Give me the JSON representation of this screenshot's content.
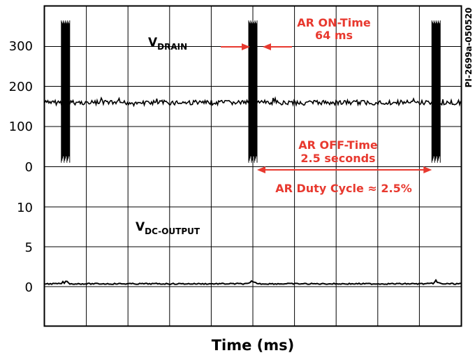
{
  "chart_data": {
    "type": "line",
    "title": "",
    "xlabel": "Time (ms)",
    "x_divisions": 10,
    "figure_code": "PI-2699a-050520",
    "panels": [
      {
        "name": "",
        "trace_label": {
          "main": "V",
          "sub": "DRAIN"
        },
        "yticks": [
          "300",
          "200",
          "100",
          "0"
        ],
        "ylim": [
          0,
          350
        ],
        "baseline": 160,
        "baseline_noise": 6,
        "bursts": [
          {
            "x_div": 0.5,
            "y_min": 10,
            "y_max": 365
          },
          {
            "x_div": 5.0,
            "y_min": 10,
            "y_max": 365
          },
          {
            "x_div": 9.4,
            "y_min": 10,
            "y_max": 365
          }
        ]
      },
      {
        "name": "",
        "trace_label": {
          "main": "V",
          "sub": "DC-OUTPUT"
        },
        "yticks": [
          "10",
          "5",
          "0"
        ],
        "ylim": [
          0,
          15
        ],
        "baseline": 0,
        "bumps": [
          {
            "x_div": 0.5,
            "height": 0.3
          },
          {
            "x_div": 5.0,
            "height": 0.3
          },
          {
            "x_div": 9.4,
            "height": 0.3
          }
        ]
      }
    ],
    "annotations": {
      "on_time": {
        "line1": "AR ON-Time",
        "line2": "64 ms"
      },
      "off_time": {
        "line1": "AR OFF-Time",
        "line2": "2.5 seconds",
        "from_x_div": 5.1,
        "to_x_div": 9.3
      },
      "duty_cycle": "AR Duty Cycle ≈ 2.5%"
    },
    "colors": {
      "trace": "#000000",
      "annotation": "#e8392f",
      "grid": "#000000"
    },
    "grid": true
  }
}
